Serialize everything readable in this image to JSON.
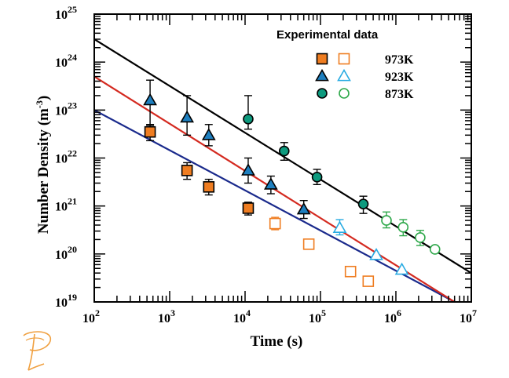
{
  "chart_data": {
    "type": "scatter",
    "xlabel": "Time (s)",
    "ylabel_main": "Number Density (m",
    "ylabel_unit_exp": "-3",
    "ylabel_close": ")",
    "x_scale": "log",
    "y_scale": "log",
    "xlim": [
      100,
      10000000
    ],
    "ylim": [
      1e+19,
      1e+25
    ],
    "x_ticks": [
      {
        "value": 100,
        "base": "10",
        "exp": "2"
      },
      {
        "value": 1000,
        "base": "10",
        "exp": "3"
      },
      {
        "value": 10000,
        "base": "10",
        "exp": "4"
      },
      {
        "value": 100000,
        "base": "10",
        "exp": "5"
      },
      {
        "value": 1000000,
        "base": "10",
        "exp": "6"
      },
      {
        "value": 10000000,
        "base": "10",
        "exp": "7"
      }
    ],
    "y_ticks": [
      {
        "value": 1e+19,
        "base": "10",
        "exp": "19"
      },
      {
        "value": 1e+20,
        "base": "10",
        "exp": "20"
      },
      {
        "value": 1e+21,
        "base": "10",
        "exp": "21"
      },
      {
        "value": 1e+22,
        "base": "10",
        "exp": "22"
      },
      {
        "value": 1e+23,
        "base": "10",
        "exp": "23"
      },
      {
        "value": 1e+24,
        "base": "10",
        "exp": "24"
      },
      {
        "value": 1e+25,
        "base": "10",
        "exp": "25"
      }
    ],
    "legend_title": "Experimental data",
    "legend_position": "top-right",
    "grid": false,
    "series": [
      {
        "name": "973K",
        "color": "#ef7d21",
        "marker": "square",
        "fit_color": "#1a2a8c",
        "fit": [
          [
            100,
            1e+23
          ],
          [
            6000000,
            1e+19
          ]
        ],
        "filled": [
          {
            "x": 550,
            "y": 3.5e+22,
            "err_lo": 2.3e+22,
            "err_hi": 4.8e+22
          },
          {
            "x": 1700,
            "y": 5.5e+21,
            "err_lo": 3.6e+21,
            "err_hi": 8e+21
          },
          {
            "x": 3300,
            "y": 2.5e+21,
            "err_lo": 1.7e+21,
            "err_hi": 3.6e+21
          },
          {
            "x": 11000,
            "y": 9e+20,
            "err_lo": 6.5e+20,
            "err_hi": 1.2e+21
          }
        ],
        "open": [
          {
            "x": 25000,
            "y": 4.3e+20,
            "err_lo": 3.2e+20,
            "err_hi": 5.8e+20
          },
          {
            "x": 70000,
            "y": 1.6e+20
          },
          {
            "x": 250000,
            "y": 4.3e+19
          },
          {
            "x": 430000,
            "y": 2.7e+19
          }
        ]
      },
      {
        "name": "923K",
        "color": "#1e7fbf",
        "open_color": "#29abe2",
        "marker": "triangle",
        "fit_color": "#d42a20",
        "fit": [
          [
            100,
            5e+23
          ],
          [
            6000000,
            1e+19
          ]
        ],
        "filled": [
          {
            "x": 550,
            "y": 1.6e+23,
            "err_lo": 5e+22,
            "err_hi": 4.2e+23
          },
          {
            "x": 1700,
            "y": 7e+22,
            "err_lo": 3e+22,
            "err_hi": 2e+23
          },
          {
            "x": 3300,
            "y": 3e+22,
            "err_lo": 1.8e+22,
            "err_hi": 5e+22
          },
          {
            "x": 11000,
            "y": 5.5e+21,
            "err_lo": 3e+21,
            "err_hi": 1e+22
          },
          {
            "x": 22000,
            "y": 2.8e+21,
            "err_lo": 1.8e+21,
            "err_hi": 4.2e+21
          },
          {
            "x": 60000,
            "y": 8.5e+20,
            "err_lo": 5.5e+20,
            "err_hi": 1.3e+21
          }
        ],
        "open": [
          {
            "x": 180000,
            "y": 3.5e+20,
            "err_lo": 2.5e+20,
            "err_hi": 5.2e+20
          },
          {
            "x": 550000,
            "y": 9.5e+19
          },
          {
            "x": 1200000,
            "y": 4.7e+19
          }
        ]
      },
      {
        "name": "873K",
        "color": "#0d9a7e",
        "open_color": "#2ea84a",
        "marker": "circle",
        "fit_color": "#000000",
        "fit": [
          [
            100,
            3e+24
          ],
          [
            10000000,
            4e+19
          ]
        ],
        "filled": [
          {
            "x": 11000,
            "y": 6.5e+22,
            "err_lo": 4e+22,
            "err_hi": 2e+23
          },
          {
            "x": 33000,
            "y": 1.4e+22,
            "err_lo": 9e+21,
            "err_hi": 2.1e+22
          },
          {
            "x": 90000,
            "y": 4e+21,
            "err_lo": 2.8e+21,
            "err_hi": 5.8e+21
          },
          {
            "x": 370000,
            "y": 1.1e+21,
            "err_lo": 7e+20,
            "err_hi": 1.6e+21
          }
        ],
        "open": [
          {
            "x": 750000,
            "y": 5e+20,
            "err_lo": 3.5e+20,
            "err_hi": 7.5e+20
          },
          {
            "x": 1250000,
            "y": 3.6e+20,
            "err_lo": 2.4e+20,
            "err_hi": 5.2e+20
          },
          {
            "x": 2100000,
            "y": 2.2e+20,
            "err_lo": 1.5e+20,
            "err_hi": 3.1e+20
          },
          {
            "x": 3300000,
            "y": 1.25e+20
          }
        ]
      }
    ]
  },
  "logo": {
    "name": "P-logo",
    "color": "#f0a040"
  }
}
